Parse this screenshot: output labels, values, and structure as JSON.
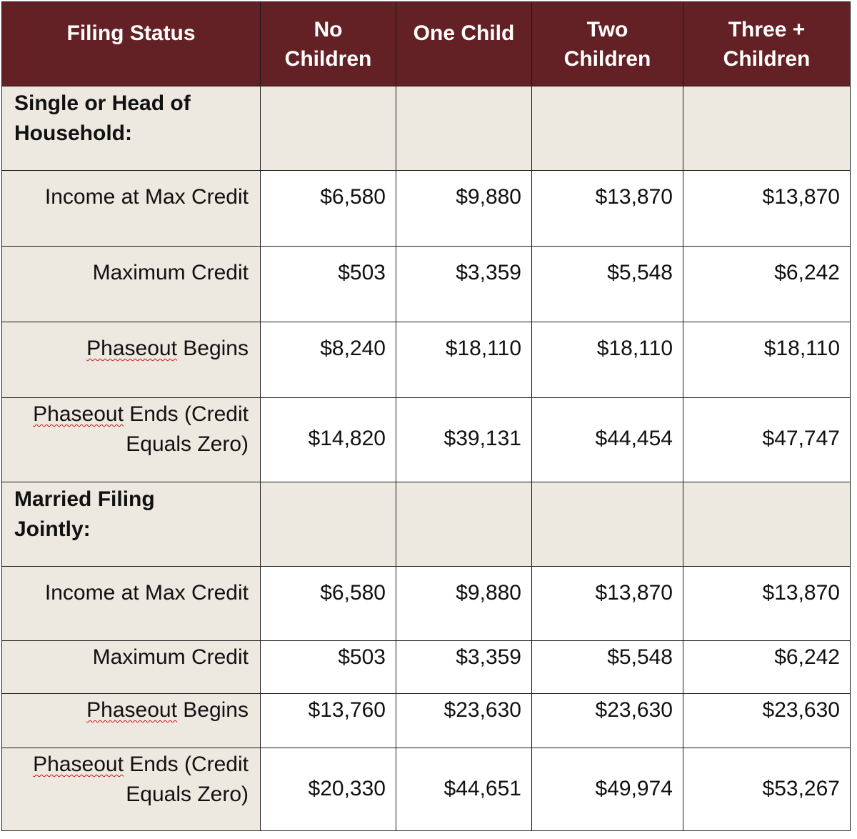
{
  "header": {
    "filing_status": "Filing Status",
    "no_children": "No\nChildren",
    "one_child": "One Child",
    "two_children": "Two\nChildren",
    "three_plus_children": "Three +\nChildren"
  },
  "groups": [
    {
      "label": "Single or Head of\nHousehold:",
      "rows": [
        {
          "label": "Income at Max Credit",
          "values": [
            "$6,580",
            "$9,880",
            "$13,870",
            "$13,870"
          ]
        },
        {
          "label": "Maximum Credit",
          "values": [
            "$503",
            "$3,359",
            "$5,548",
            "$6,242"
          ]
        },
        {
          "label_word": "Phaseout",
          "label_rest": " Begins",
          "values": [
            "$8,240",
            "$18,110",
            "$18,110",
            "$18,110"
          ]
        },
        {
          "label_word": "Phaseout",
          "label_rest": " Ends (Credit\nEquals Zero)",
          "values": [
            "$14,820",
            "$39,131",
            "$44,454",
            "$47,747"
          ]
        }
      ]
    },
    {
      "label": "Married Filing\nJointly:",
      "rows": [
        {
          "label": "Income at Max Credit",
          "values": [
            "$6,580",
            "$9,880",
            "$13,870",
            "$13,870"
          ]
        },
        {
          "label": "Maximum Credit",
          "values": [
            "$503",
            "$3,359",
            "$5,548",
            "$6,242"
          ]
        },
        {
          "label_word": "Phaseout",
          "label_rest": " Begins",
          "values": [
            "$13,760",
            "$23,630",
            "$23,630",
            "$23,630"
          ]
        },
        {
          "label_word": "Phaseout",
          "label_rest": " Ends (Credit\nEquals Zero)",
          "values": [
            "$20,330",
            "$44,651",
            "$49,974",
            "$53,267"
          ]
        }
      ]
    }
  ],
  "colors": {
    "header_bg": "#632125",
    "header_text": "#ffffff",
    "label_bg": "#ede9e1",
    "grid": "#1a1a1a",
    "spellcheck_underline": "#d01010"
  }
}
